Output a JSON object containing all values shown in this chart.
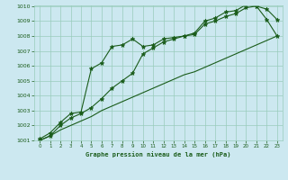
{
  "title": "Graphe pression niveau de la mer (hPa)",
  "bg_color": "#cce8f0",
  "grid_color": "#99ccbb",
  "line_color": "#1a5c1a",
  "xmin": -0.5,
  "xmax": 23.5,
  "ymin": 1001,
  "ymax": 1010,
  "series1": [
    1001.1,
    1001.5,
    1002.2,
    1002.8,
    1002.9,
    1005.8,
    1006.2,
    1007.3,
    1007.4,
    1007.8,
    1007.3,
    1007.4,
    1007.8,
    1007.9,
    1008.0,
    1008.2,
    1009.0,
    1009.2,
    1009.6,
    1009.7,
    1010.1,
    1010.0,
    1009.1,
    1008.0
  ],
  "series2": [
    1001.0,
    1001.3,
    1002.0,
    1002.5,
    1002.8,
    1003.2,
    1003.8,
    1004.5,
    1005.0,
    1005.5,
    1006.8,
    1007.2,
    1007.6,
    1007.8,
    1008.0,
    1008.1,
    1008.8,
    1009.0,
    1009.3,
    1009.5,
    1009.9,
    1010.0,
    1009.8,
    1009.1
  ],
  "series3": [
    1001.0,
    1001.3,
    1001.7,
    1002.0,
    1002.3,
    1002.6,
    1003.0,
    1003.3,
    1003.6,
    1003.9,
    1004.2,
    1004.5,
    1004.8,
    1005.1,
    1005.4,
    1005.6,
    1005.9,
    1006.2,
    1006.5,
    1006.8,
    1007.1,
    1007.4,
    1007.7,
    1008.0
  ],
  "yticks": [
    1001,
    1002,
    1003,
    1004,
    1005,
    1006,
    1007,
    1008,
    1009,
    1010
  ],
  "xticks": [
    0,
    1,
    2,
    3,
    4,
    5,
    6,
    7,
    8,
    9,
    10,
    11,
    12,
    13,
    14,
    15,
    16,
    17,
    18,
    19,
    20,
    21,
    22,
    23
  ],
  "xtick_labels": [
    "0",
    "1",
    "2",
    "3",
    "4",
    "5",
    "6",
    "7",
    "8",
    "9",
    "10",
    "11",
    "12",
    "13",
    "14",
    "15",
    "16",
    "17",
    "18",
    "19",
    "20",
    "21",
    "22",
    "23"
  ]
}
